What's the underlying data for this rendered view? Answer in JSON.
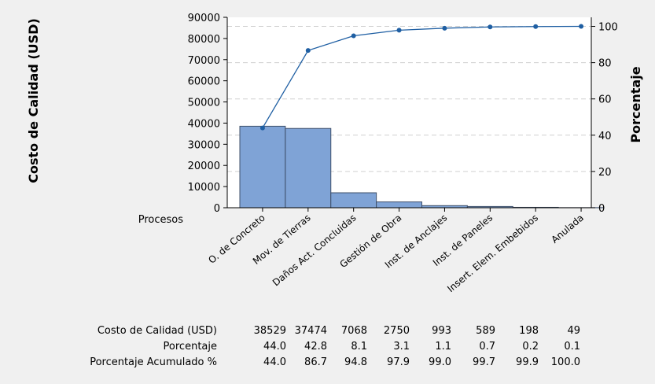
{
  "chart_data": {
    "type": "pareto",
    "categories": [
      "O. de Concreto",
      "Mov. de Tierras",
      "Daños Act. Concluidas",
      "Gestión de Obra",
      "Inst. de Anclajes",
      "Inst. de Paneles",
      "Insert. Elem. Embebidos",
      "Anulada"
    ],
    "series": [
      {
        "name": "Costo de Calidad (USD)",
        "kind": "bar",
        "axis": "left",
        "values": [
          38529,
          37474,
          7068,
          2750,
          993,
          589,
          198,
          49
        ]
      },
      {
        "name": "Porcentaje Acumulado %",
        "kind": "line",
        "axis": "right",
        "values": [
          44.0,
          86.7,
          94.8,
          97.9,
          99.0,
          99.7,
          99.9,
          100.0
        ]
      }
    ],
    "ylabel_left": "Costo de Calidad (USD)",
    "ylabel_right": "Porcentaje",
    "xaxis_label": "Procesos",
    "ylim_left": [
      0,
      90000
    ],
    "yticks_left": [
      "0",
      "10000",
      "20000",
      "30000",
      "40000",
      "50000",
      "60000",
      "70000",
      "80000",
      "90000"
    ],
    "ylim_right": [
      0,
      105
    ],
    "yticks_right": [
      "0",
      "20",
      "40",
      "60",
      "80",
      "100"
    ],
    "table": {
      "rows": [
        {
          "label": "Costo de Calidad (USD)",
          "cells": [
            "38529",
            "37474",
            "7068",
            "2750",
            "993",
            "589",
            "198",
            "49"
          ]
        },
        {
          "label": "Porcentaje",
          "cells": [
            "44.0",
            "42.8",
            "8.1",
            "3.1",
            "1.1",
            "0.7",
            "0.2",
            "0.1"
          ]
        },
        {
          "label": "Porcentaje Acumulado %",
          "cells": [
            "44.0",
            "86.7",
            "94.8",
            "97.9",
            "99.0",
            "99.7",
            "99.9",
            "100.0"
          ]
        }
      ]
    },
    "colors": {
      "bar": "#7fa3d6",
      "bar_edge": "#3e4f6a",
      "line": "#1f5fa3",
      "grid": "#d0d0d0",
      "frame_bg": "#f0f0f0"
    },
    "grid": true
  }
}
